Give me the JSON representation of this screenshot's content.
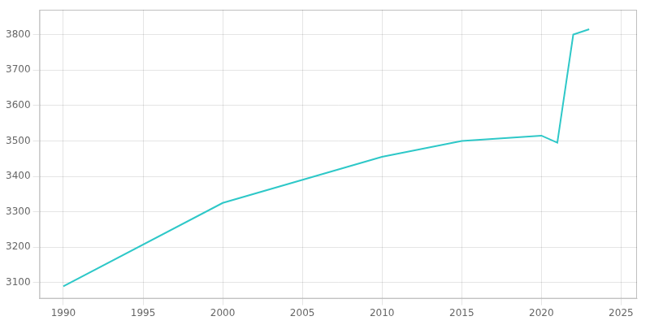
{
  "chart_data": {
    "type": "line",
    "x": [
      1990,
      2000,
      2010,
      2015,
      2020,
      2021,
      2022,
      2023
    ],
    "values": [
      3090,
      3325,
      3455,
      3500,
      3515,
      3495,
      3800,
      3815
    ],
    "color": "#2ec8c8",
    "xlim": [
      1988.5,
      2026
    ],
    "xticks": [
      1990,
      1995,
      2000,
      2005,
      2010,
      2015,
      2020,
      2025
    ],
    "ylim": [
      3055,
      3870
    ],
    "yticks": [
      3100,
      3200,
      3300,
      3400,
      3500,
      3600,
      3700,
      3800
    ],
    "grid": true
  }
}
